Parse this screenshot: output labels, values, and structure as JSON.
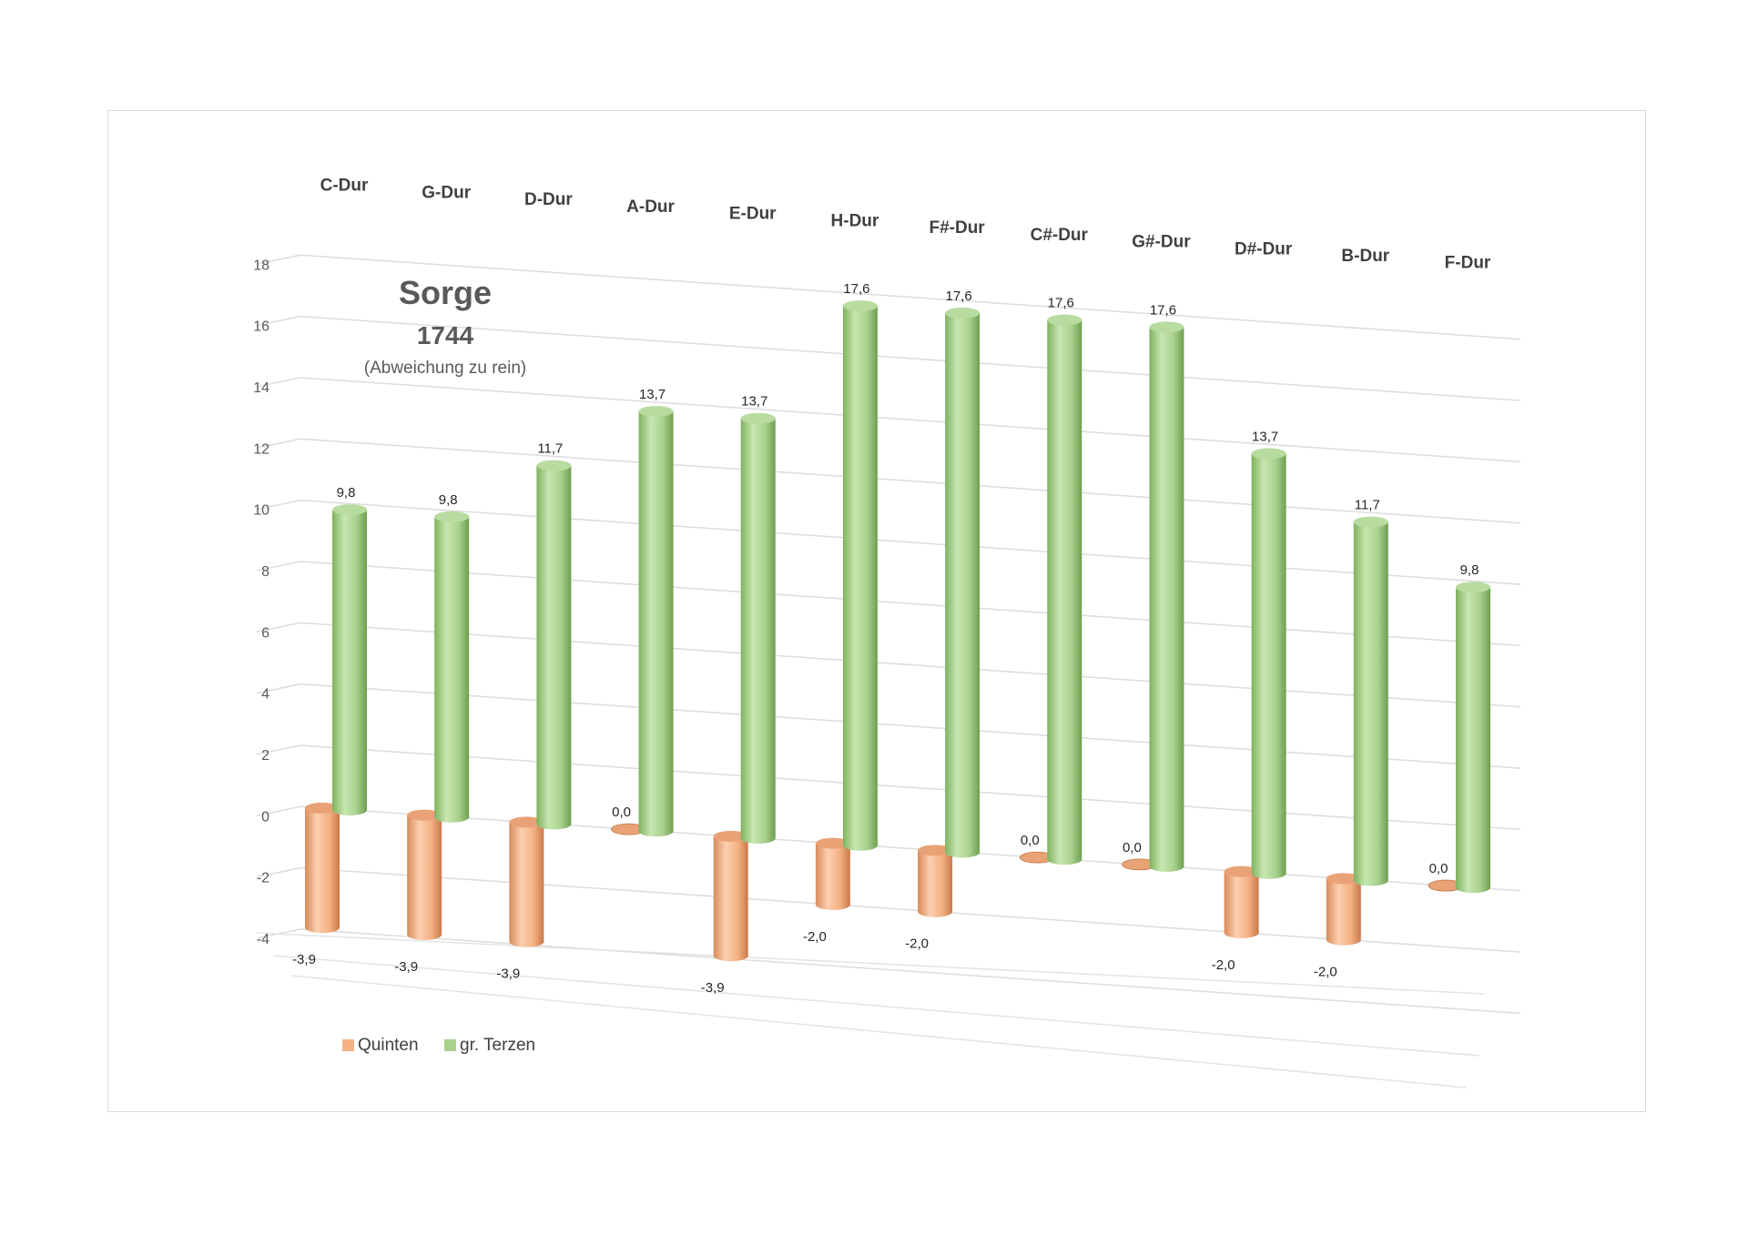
{
  "chart_data": {
    "type": "bar",
    "style": "3d-cylinder",
    "title": "Sorge",
    "subtitle": "1744",
    "note": "(Abweichung zu rein)",
    "categories": [
      "C-Dur",
      "G-Dur",
      "D-Dur",
      "A-Dur",
      "E-Dur",
      "H-Dur",
      "F#-Dur",
      "C#-Dur",
      "G#-Dur",
      "D#-Dur",
      "B-Dur",
      "F-Dur"
    ],
    "series": [
      {
        "name": "Quinten",
        "color": "#f4b183",
        "values": [
          -3.9,
          -3.9,
          -3.9,
          0.0,
          -3.9,
          -2.0,
          -2.0,
          0.0,
          0.0,
          -2.0,
          -2.0,
          0.0
        ],
        "labels": [
          "-3,9",
          "-3,9",
          "-3,9",
          "0,0",
          "-3,9",
          "-2,0",
          "-2,0",
          "0,0",
          "0,0",
          "-2,0",
          "-2,0",
          "0,0"
        ]
      },
      {
        "name": "gr. Terzen",
        "color": "#a9d18e",
        "values": [
          9.8,
          9.8,
          11.7,
          13.7,
          13.7,
          17.6,
          17.6,
          17.6,
          17.6,
          13.7,
          11.7,
          9.8
        ],
        "labels": [
          "9,8",
          "9,8",
          "11,7",
          "13,7",
          "13,7",
          "17,6",
          "17,6",
          "17,6",
          "17,6",
          "13,7",
          "11,7",
          "9,8"
        ]
      }
    ],
    "yticks": [
      "18",
      "16",
      "14",
      "12",
      "10",
      "8",
      "6",
      "4",
      "2",
      "0",
      "-2",
      "-4"
    ],
    "ylim": [
      -4,
      18
    ],
    "grid": true,
    "legend": "bottom-left"
  }
}
